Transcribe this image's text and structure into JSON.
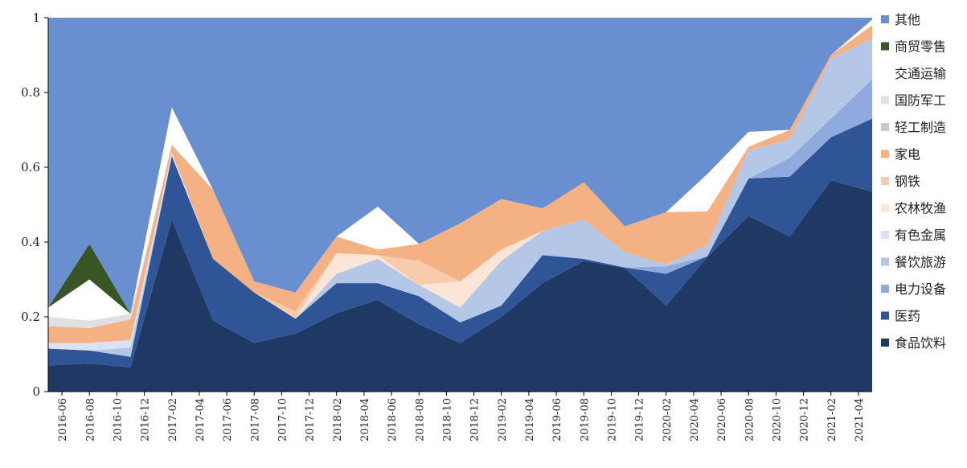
{
  "chart_data": {
    "type": "area",
    "stacked": true,
    "ylim": [
      0,
      1
    ],
    "yticks": [
      "0",
      "0.2",
      "0.4",
      "0.6",
      "0.8",
      "1"
    ],
    "x": [
      "2016-06",
      "2016-09",
      "2016-12",
      "2017-03",
      "2017-06",
      "2017-09",
      "2017-12",
      "2018-03",
      "2018-06",
      "2018-09",
      "2018-12",
      "2019-03",
      "2019-06",
      "2019-09",
      "2019-12",
      "2020-03",
      "2020-06",
      "2020-09",
      "2020-12",
      "2021-03",
      "2021-05"
    ],
    "xticks": [
      "2016-06",
      "2016-08",
      "2016-10",
      "2016-12",
      "2017-02",
      "2017-04",
      "2017-06",
      "2017-08",
      "2017-10",
      "2017-12",
      "2018-02",
      "2018-04",
      "2018-06",
      "2018-08",
      "2018-10",
      "2018-12",
      "2019-02",
      "2019-04",
      "2019-06",
      "2019-08",
      "2019-10",
      "2019-12",
      "2020-02",
      "2020-04",
      "2020-06",
      "2020-08",
      "2020-10",
      "2020-12",
      "2021-02",
      "2021-04"
    ],
    "series": [
      {
        "name": "食品饮料",
        "color": "#203864",
        "values": [
          0.07,
          0.075,
          0.065,
          0.46,
          0.19,
          0.13,
          0.155,
          0.21,
          0.245,
          0.18,
          0.13,
          0.2,
          0.29,
          0.35,
          0.33,
          0.23,
          0.36,
          0.47,
          0.415,
          0.565,
          0.535
        ]
      },
      {
        "name": "医药",
        "color": "#2f5597",
        "values": [
          0.045,
          0.035,
          0.028,
          0.17,
          0.165,
          0.135,
          0.04,
          0.08,
          0.045,
          0.075,
          0.055,
          0.03,
          0.075,
          0.005,
          0.002,
          0.085,
          0.002,
          0.1,
          0.16,
          0.115,
          0.195
        ]
      },
      {
        "name": "电力设备",
        "color": "#8faadc",
        "values": [
          0,
          0,
          0,
          0,
          0,
          0,
          0,
          0,
          0,
          0,
          0,
          0,
          0,
          0,
          0,
          0.02,
          0,
          0,
          0.05,
          0.05,
          0.105
        ]
      },
      {
        "name": "餐饮旅游",
        "color": "#b4c7e7",
        "values": [
          0,
          0,
          0.025,
          0,
          0,
          0,
          0,
          0.025,
          0.065,
          0.03,
          0.04,
          0.12,
          0.065,
          0.105,
          0.04,
          0.005,
          0.03,
          0.075,
          0.05,
          0.16,
          0.11
        ]
      },
      {
        "name": "有色金属",
        "color": "#dae3f3",
        "values": [
          0.015,
          0.02,
          0.02,
          0.01,
          0,
          0,
          0,
          0,
          0,
          0,
          0,
          0,
          0,
          0,
          0,
          0,
          0,
          0,
          0,
          0,
          0
        ]
      },
      {
        "name": "农林牧渔",
        "color": "#fbe5d6",
        "values": [
          0,
          0,
          0,
          0,
          0,
          0,
          0,
          0.055,
          0.01,
          0,
          0.07,
          0.03,
          0,
          0,
          0,
          0,
          0,
          0,
          0,
          0,
          0
        ]
      },
      {
        "name": "钢铁",
        "color": "#f8cbad",
        "values": [
          0,
          0,
          0,
          0,
          0,
          0,
          0.02,
          0,
          0,
          0.065,
          0,
          0,
          0,
          0,
          0,
          0,
          0,
          0,
          0,
          0,
          0
        ]
      },
      {
        "name": "家电",
        "color": "#f4b183",
        "values": [
          0.045,
          0.04,
          0.055,
          0.02,
          0.185,
          0.03,
          0.05,
          0.045,
          0.015,
          0.045,
          0.155,
          0.135,
          0.06,
          0.1,
          0.07,
          0.14,
          0.09,
          0.01,
          0.025,
          0.01,
          0.035
        ]
      },
      {
        "name": "轻工制造",
        "color": "#c9c9c9",
        "values": [
          0,
          0,
          0,
          0,
          0,
          0,
          0,
          0,
          0,
          0,
          0,
          0,
          0,
          0,
          0,
          0,
          0,
          0,
          0,
          0,
          0
        ]
      },
      {
        "name": "国防军工",
        "color": "#e0e0e0",
        "values": [
          0.025,
          0.02,
          0.015,
          0,
          0,
          0,
          0,
          0,
          0,
          0,
          0,
          0,
          0,
          0,
          0,
          0,
          0,
          0,
          0,
          0,
          0
        ]
      },
      {
        "name": "交通运输",
        "color": "#ffffff",
        "values": [
          0.025,
          0.11,
          0,
          0.1,
          0,
          0,
          0,
          0,
          0.115,
          0,
          0,
          0,
          0,
          0,
          0,
          0,
          0.1,
          0.04,
          0,
          0,
          0.015
        ]
      },
      {
        "name": "商贸零售",
        "color": "#375623",
        "values": [
          0,
          0.095,
          0,
          0,
          0,
          0,
          0,
          0,
          0,
          0,
          0,
          0,
          0,
          0,
          0,
          0,
          0,
          0,
          0,
          0,
          0
        ]
      },
      {
        "name": "其他",
        "color": "#6a8fd0",
        "values": [
          0.775,
          0.605,
          0.792,
          0.24,
          0.46,
          0.705,
          0.735,
          0.585,
          0.505,
          0.605,
          0.55,
          0.485,
          0.51,
          0.44,
          0.558,
          0.52,
          0.418,
          0.305,
          0.3,
          0.1,
          0.005
        ]
      }
    ],
    "legend": [
      "其他",
      "商贸零售",
      "交通运输",
      "国防军工",
      "轻工制造",
      "家电",
      "钢铁",
      "农林牧渔",
      "有色金属",
      "餐饮旅游",
      "电力设备",
      "医药",
      "食品饮料"
    ],
    "legend_position": "right"
  }
}
